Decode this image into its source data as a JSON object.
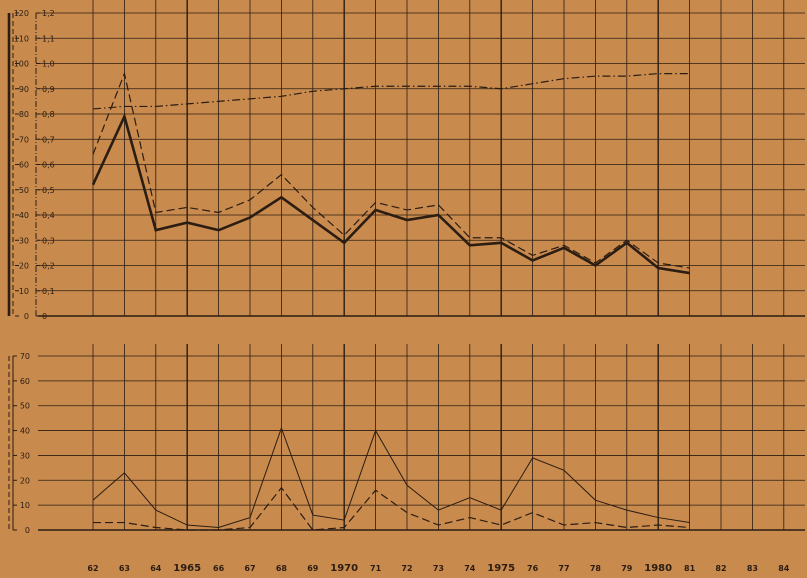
{
  "background_color": "#c98a4e",
  "ink_color": "#2b1d12",
  "chart_data": [
    {
      "type": "line",
      "panel": "top",
      "x": [
        "62",
        "63",
        "64",
        "1965",
        "66",
        "67",
        "68",
        "69",
        "1970",
        "71",
        "72",
        "73",
        "74",
        "1975",
        "76",
        "77",
        "78",
        "79",
        "1980",
        "81",
        "82",
        "83",
        "84"
      ],
      "left_axis_ticks": [
        "0",
        "10",
        "20",
        "30",
        "40",
        "50",
        "60",
        "70",
        "80",
        "90",
        "100",
        "110",
        "120"
      ],
      "right_axis_ticks": [
        "0",
        "0,1",
        "0,2",
        "0,3",
        "0,4",
        "0,5",
        "0,6",
        "0,7",
        "0,8",
        "0,9",
        "1,0",
        "1,1",
        "1,2"
      ],
      "ylim_left": [
        0,
        120
      ],
      "ylim_right": [
        0,
        1.2
      ],
      "series": [
        {
          "style": "solid-bold",
          "axis": "left",
          "values": [
            52,
            79,
            34,
            37,
            34,
            39,
            47,
            38,
            29,
            42,
            38,
            40,
            28,
            29,
            22,
            27,
            20,
            29,
            19,
            17,
            null,
            null,
            null
          ]
        },
        {
          "style": "dashed",
          "axis": "left",
          "values": [
            64,
            96,
            41,
            43,
            41,
            46,
            56,
            43,
            32,
            45,
            42,
            44,
            31,
            31,
            24,
            28,
            21,
            30,
            21,
            19,
            null,
            null,
            null
          ]
        },
        {
          "style": "dash-dot",
          "axis": "right",
          "values": [
            0.82,
            0.83,
            0.83,
            0.84,
            0.85,
            0.86,
            0.87,
            0.89,
            0.9,
            0.91,
            0.91,
            0.91,
            0.91,
            0.9,
            0.92,
            0.94,
            0.95,
            0.95,
            0.96,
            0.96,
            null,
            null,
            null
          ]
        }
      ],
      "grid": true
    },
    {
      "type": "line",
      "panel": "bottom",
      "x": [
        "62",
        "63",
        "64",
        "1965",
        "66",
        "67",
        "68",
        "69",
        "1970",
        "71",
        "72",
        "73",
        "74",
        "1975",
        "76",
        "77",
        "78",
        "79",
        "1980",
        "81",
        "82",
        "83",
        "84"
      ],
      "y_ticks": [
        "0",
        "10",
        "20",
        "30",
        "40",
        "50",
        "60",
        "70"
      ],
      "ylim": [
        0,
        70
      ],
      "series": [
        {
          "style": "solid-thin",
          "values": [
            12,
            23,
            8,
            2,
            1,
            5,
            41,
            6,
            4,
            40,
            18,
            8,
            13,
            8,
            29,
            24,
            12,
            8,
            5,
            3,
            null,
            null,
            null
          ]
        },
        {
          "style": "dashed",
          "values": [
            3,
            3,
            1,
            0,
            0,
            1,
            17,
            0,
            1,
            16,
            7,
            2,
            5,
            2,
            7,
            2,
            3,
            1,
            2,
            1,
            null,
            null,
            null
          ]
        }
      ],
      "grid": true
    }
  ]
}
